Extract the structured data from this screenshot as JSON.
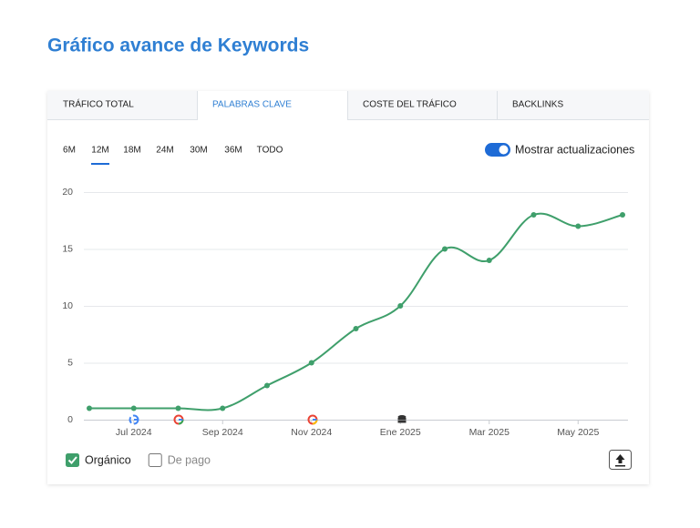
{
  "header": {
    "title": "Gráfico avance de Keywords"
  },
  "tabs": [
    "TRÁFICO TOTAL",
    "PALABRAS CLAVE",
    "COSTE DEL TRÁFICO",
    "BACKLINKS"
  ],
  "active_tab": 1,
  "periods": [
    "6M",
    "12M",
    "18M",
    "24M",
    "30M",
    "36M",
    "TODO"
  ],
  "active_period": 1,
  "toggle": {
    "label": "Mostrar actualizaciones",
    "on": true
  },
  "chart_data": {
    "type": "line",
    "categories": [
      null,
      "Jul 2024",
      null,
      "Sep 2024",
      null,
      "Nov 2024",
      null,
      "Ene 2025",
      null,
      "Mar 2025",
      null,
      "May 2025",
      null
    ],
    "series": [
      {
        "name": "Orgánico",
        "color": "#3f9f6b",
        "checked": true,
        "values": [
          1,
          1,
          1,
          1,
          3,
          5,
          8,
          10,
          15,
          14,
          18,
          17,
          18
        ]
      },
      {
        "name": "De pago",
        "color": "#9aa0a6",
        "checked": false,
        "values": [
          null,
          null,
          null,
          null,
          null,
          null,
          null,
          null,
          null,
          null,
          null,
          null,
          null
        ]
      }
    ],
    "ylim": [
      0,
      20
    ],
    "yticks": [
      0,
      5,
      10,
      15,
      20
    ],
    "grid": true
  }
}
